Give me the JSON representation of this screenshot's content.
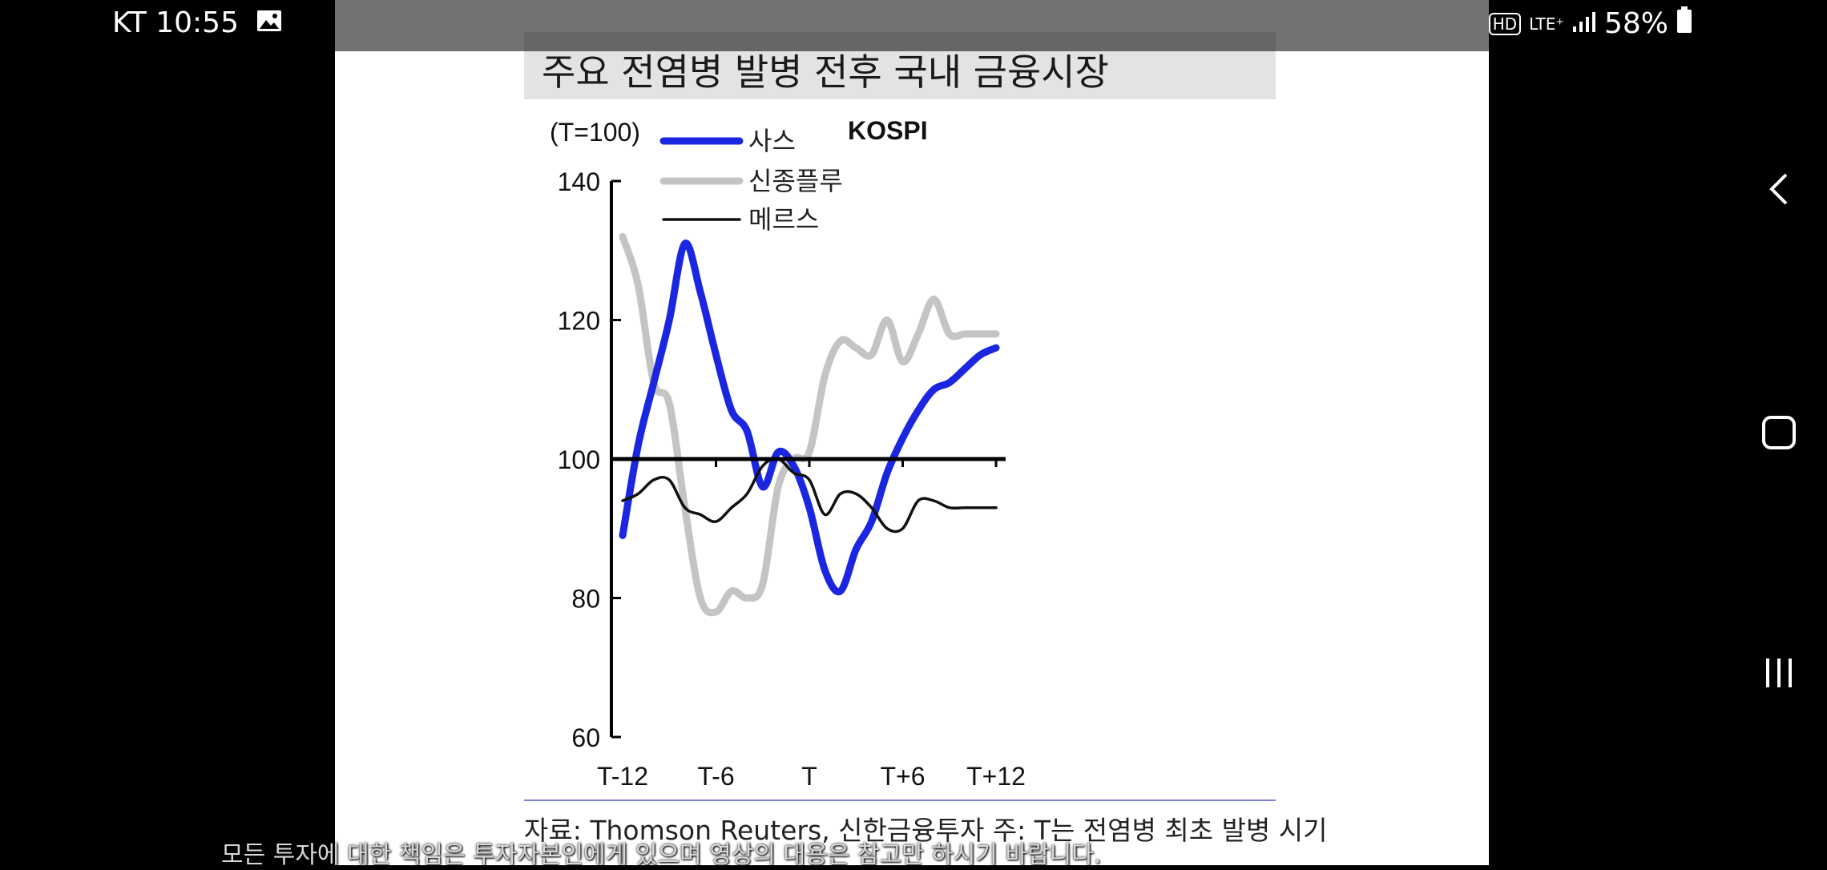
{
  "status_bar": {
    "carrier_time": "KT 10:55",
    "network": "LTE⁺",
    "hd": "HD",
    "battery": "58%"
  },
  "chart_title": "주요 전염병 발병 전후 국내 금융시장",
  "source_note": "자료: Thomson Reuters, 신한금융투자 주: T는 전염병 최초 발병 시기",
  "subtitle": "모든 투자에 대한 책임은 투자자본인에게 있으며 영상의 대용은 참고만 하시기 바랍니다.",
  "chart_data": {
    "type": "line",
    "title": "KOSPI",
    "ylabel": "(T=100)",
    "x": [
      -12,
      -11,
      -10,
      -9,
      -8,
      -7,
      -6,
      -5,
      -4,
      -3,
      -2,
      -1,
      0,
      1,
      2,
      3,
      4,
      5,
      6,
      7,
      8,
      9,
      10,
      11,
      12
    ],
    "xticks": [
      -12,
      -6,
      0,
      6,
      12
    ],
    "xtick_labels": [
      "T-12",
      "T-6",
      "T",
      "T+6",
      "T+12"
    ],
    "ylim": [
      60,
      140
    ],
    "yticks": [
      60,
      80,
      100,
      120,
      140
    ],
    "reference_line": 100,
    "legend_position": "top-left",
    "series": [
      {
        "name": "사스",
        "color": "#1a26e0",
        "values": [
          89,
          102,
          111,
          120,
          131,
          124,
          115,
          107,
          104,
          96,
          101,
          99,
          93,
          84,
          81,
          87,
          91,
          98,
          103,
          107,
          110,
          111,
          113,
          115,
          116
        ]
      },
      {
        "name": "신종플루",
        "color": "#c4c4c4",
        "values": [
          132,
          125,
          111,
          108,
          93,
          80,
          78,
          81,
          80,
          82,
          96,
          100,
          101,
          112,
          117,
          116,
          115,
          120,
          114,
          118,
          123,
          118,
          118,
          118,
          118
        ]
      },
      {
        "name": "메르스",
        "color": "#111111",
        "values": [
          94,
          95,
          97,
          97,
          93,
          92,
          91,
          93,
          95,
          99,
          100,
          98,
          97,
          92,
          95,
          95,
          93,
          90,
          90,
          94,
          94,
          93,
          93,
          93,
          93
        ]
      }
    ]
  }
}
